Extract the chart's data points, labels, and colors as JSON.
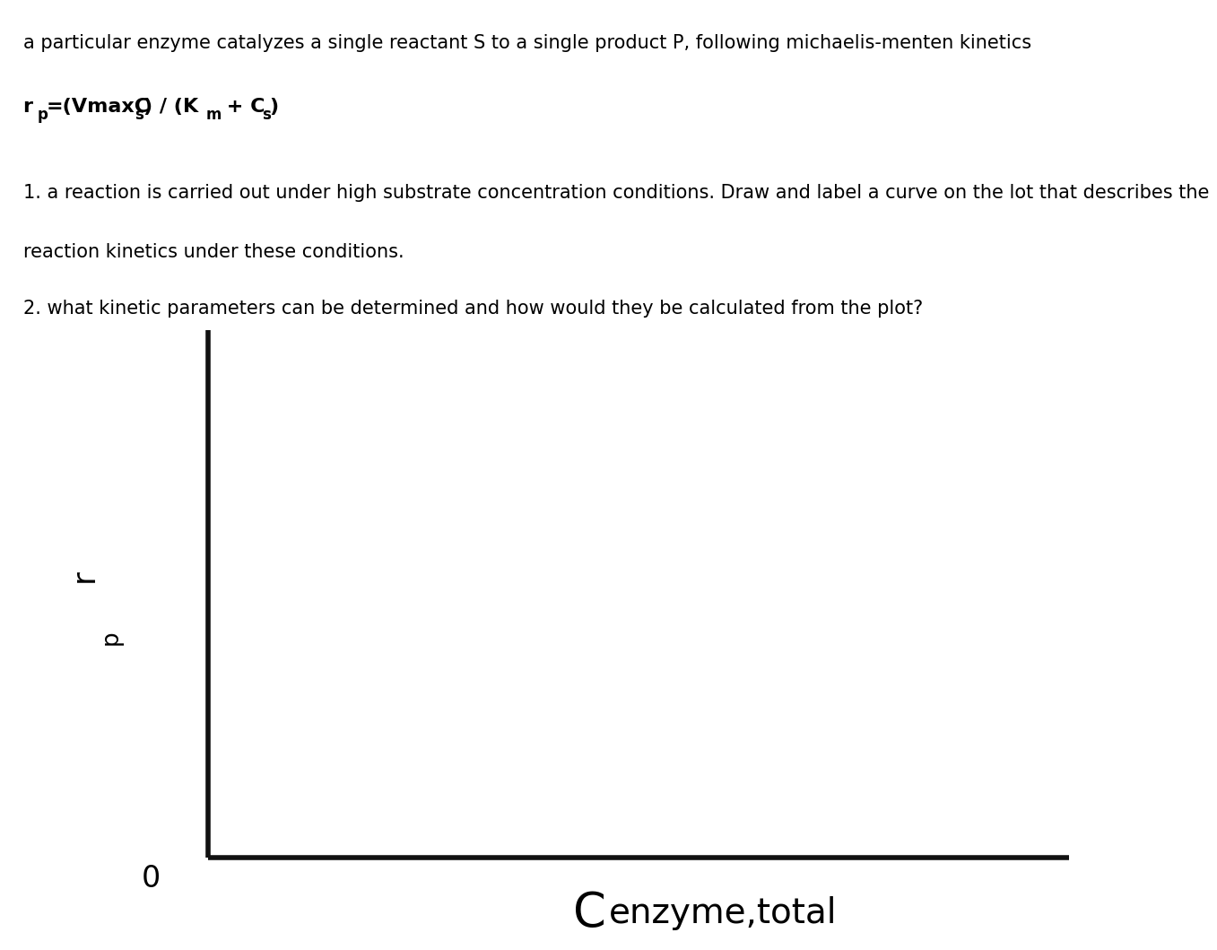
{
  "title_line1": "a particular enzyme catalyzes a single reactant S to a single product P, following michaelis-menten kinetics",
  "question1": "1. a reaction is carried out under high substrate concentration conditions. Draw and label a curve on the lot that describes the",
  "question1b": "reaction kinetics under these conditions.",
  "question2": "2. what kinetic parameters can be determined and how would they be calculated from the plot?",
  "origin_label": "0",
  "plot_bg_color": "#b2aea8",
  "text_bg_color": "#ffffff",
  "axis_color": "#111111",
  "axis_linewidth": 4.0,
  "fig_width": 12.0,
  "fig_height": 10.39,
  "text_fontsize": 15.0,
  "formula_fontsize": 16.0,
  "sub_fontsize": 12.0
}
